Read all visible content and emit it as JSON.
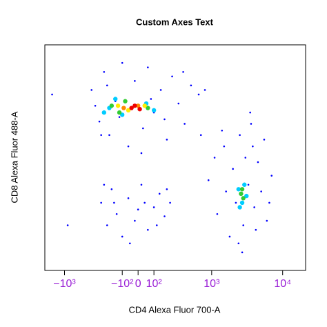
{
  "chart_data": {
    "type": "scatter",
    "title": "Custom Axes Text",
    "x_label": "CD4 Alexa Fluor 700-A",
    "y_label": "CD8 Alexa Fluor 488-A",
    "xscale": "arcsinh",
    "xlim": [
      -1900,
      21000
    ],
    "ylim": [
      0,
      100
    ],
    "xticks": [
      {
        "value": -1000,
        "label": "−10³"
      },
      {
        "value": -100,
        "label": "−10²"
      },
      0,
      {
        "value": 100,
        "label": "10²"
      },
      {
        "value": 1000,
        "label": "10³"
      },
      {
        "value": 10000,
        "label": "10⁴"
      }
    ],
    "tick_label_color": "#9a1fd6",
    "series": [
      {
        "color": "#0000ff",
        "x": [
          -400,
          -300,
          -250,
          -200,
          -150,
          -100,
          -60,
          -20,
          30,
          60,
          100,
          150,
          200,
          250,
          320,
          400,
          500,
          650,
          -350,
          -120,
          80,
          180,
          -220,
          20,
          380,
          -280,
          -280,
          -220,
          -180,
          -140,
          -100,
          -60,
          -20,
          20,
          60,
          100,
          140,
          180,
          230,
          -250,
          -50,
          0,
          120,
          -160,
          40,
          200,
          900,
          1200,
          1500,
          1800,
          2000,
          2200,
          2500,
          2800,
          3000,
          3300,
          3600,
          4000,
          4500,
          5000,
          5500,
          6000,
          7000,
          1100,
          1600,
          2400,
          3800,
          2700,
          4200,
          1400,
          6500,
          -1500,
          700,
          800,
          3500,
          -900
        ],
        "y": [
          80,
          66,
          88,
          60,
          75,
          92,
          55,
          84,
          63,
          90,
          70,
          80,
          58,
          86,
          74,
          65,
          82,
          78,
          73,
          68,
          76,
          67,
          82,
          52,
          88,
          60,
          30,
          20,
          36,
          25,
          15,
          32,
          22,
          38,
          18,
          28,
          34,
          24,
          30,
          38,
          12,
          27,
          20,
          30,
          30,
          36,
          40,
          25,
          55,
          15,
          45,
          30,
          60,
          20,
          50,
          38,
          65,
          28,
          48,
          35,
          58,
          22,
          42,
          50,
          35,
          12,
          55,
          8,
          18,
          62,
          30,
          78,
          60,
          80,
          70,
          20
        ]
      },
      {
        "color": "#00ccff",
        "x": [
          -200,
          -150,
          -100,
          50,
          100,
          -250,
          2400,
          2700,
          2900,
          2500,
          3100
        ],
        "y": [
          72,
          76,
          69,
          74,
          71,
          70,
          36,
          30,
          38,
          28,
          33
        ]
      },
      {
        "color": "#33cc33",
        "x": [
          -180,
          -120,
          60,
          -80,
          2600,
          2800,
          2700
        ],
        "y": [
          73,
          70,
          72,
          75,
          34,
          32,
          36
        ]
      },
      {
        "color": "#ffee00",
        "x": [
          -130,
          -60,
          40
        ],
        "y": [
          73,
          71,
          73
        ]
      },
      {
        "color": "#ff8800",
        "x": [
          -90,
          0
        ],
        "y": [
          72,
          73
        ]
      },
      {
        "color": "#ee0000",
        "x": [
          -40,
          10,
          -20
        ],
        "y": [
          72,
          71.5,
          73
        ]
      }
    ]
  }
}
